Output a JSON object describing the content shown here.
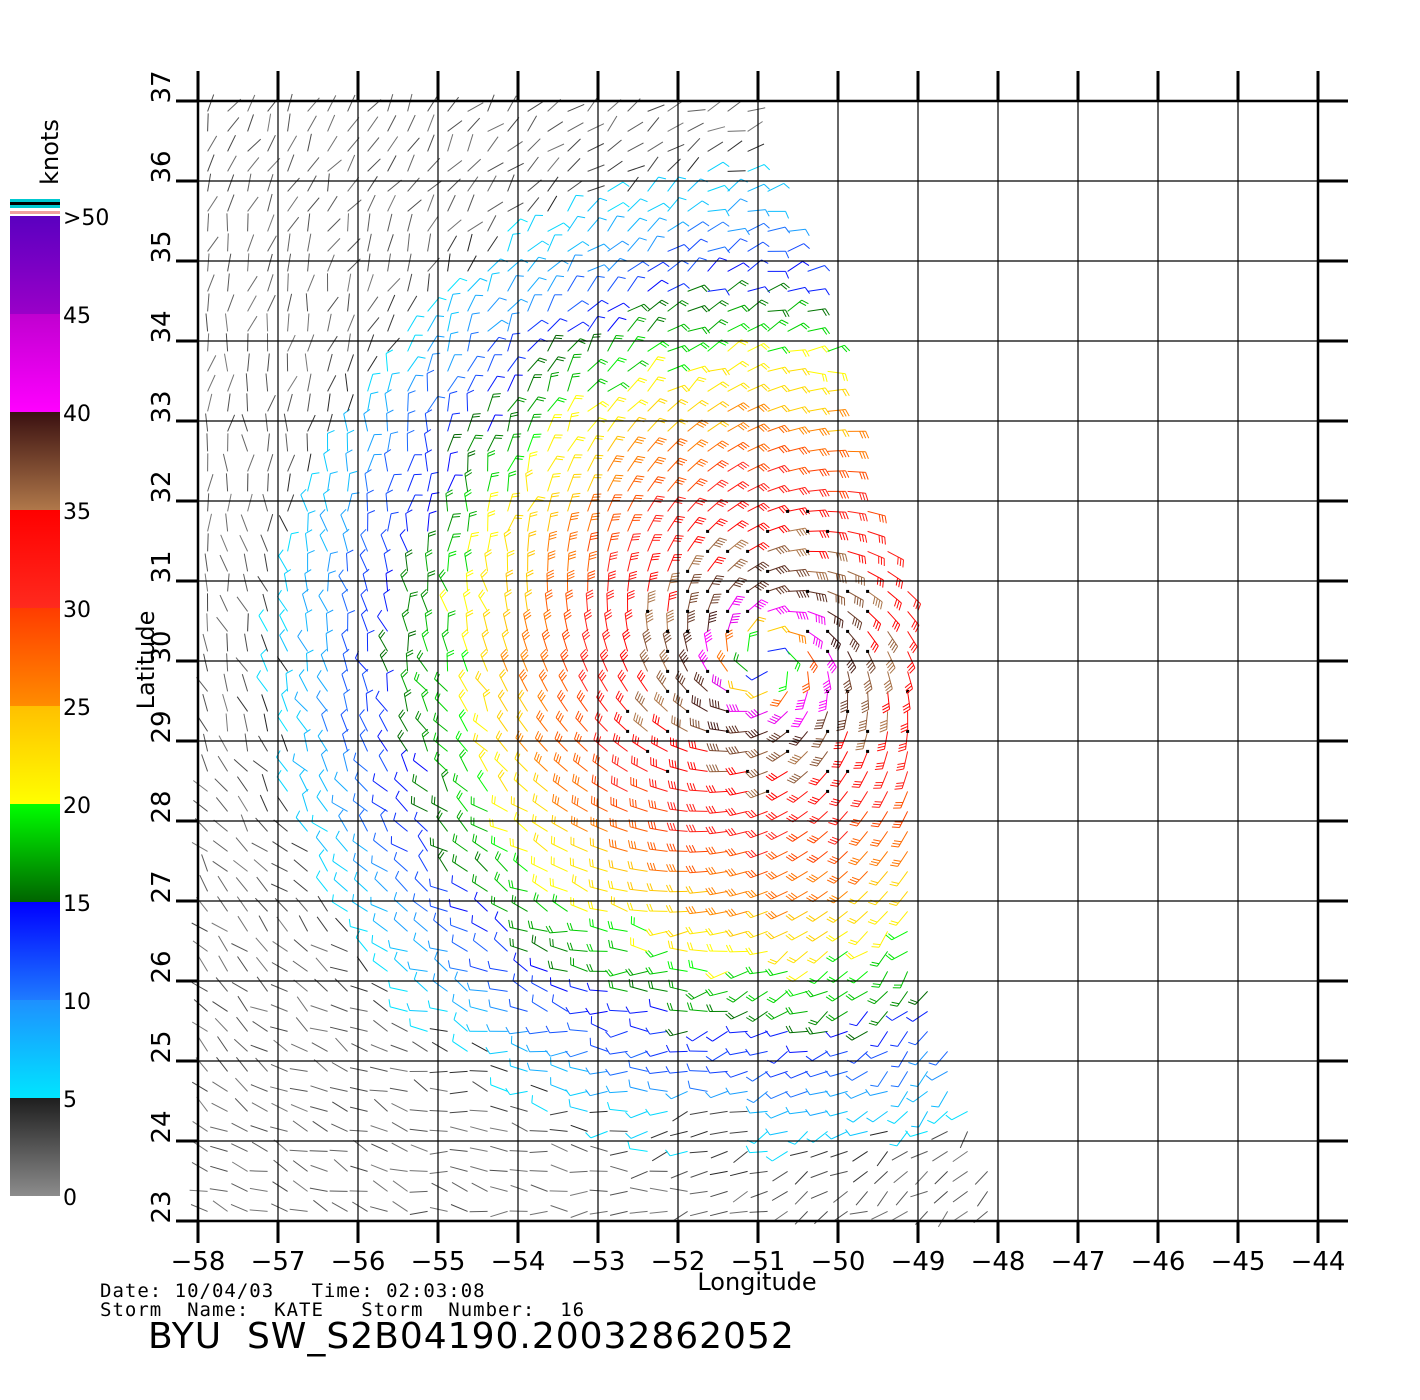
{
  "chart_data": {
    "type": "wind-barb map",
    "xlabel": "Longitude",
    "ylabel": "Latitude",
    "xlim": [
      -58,
      -44
    ],
    "ylim": [
      23,
      37
    ],
    "x_ticks": [
      "−58",
      "−57",
      "−56",
      "−55",
      "−54",
      "−53",
      "−52",
      "−51",
      "−50",
      "−49",
      "−48",
      "−47",
      "−46",
      "−45",
      "−44"
    ],
    "y_ticks": [
      "23",
      "24",
      "25",
      "26",
      "27",
      "28",
      "29",
      "30",
      "31",
      "32",
      "33",
      "34",
      "35",
      "36",
      "37"
    ],
    "grid": true,
    "storm_center": {
      "lon": -50.9,
      "lat": 30.0
    },
    "swath_west_lon": -58,
    "swath_east_lon_by_lat": [
      [
        23,
        -48.0
      ],
      [
        24,
        -48.2
      ],
      [
        25,
        -48.5
      ],
      [
        26,
        -48.9
      ],
      [
        27,
        -49.1
      ],
      [
        28,
        -49.1
      ],
      [
        29,
        -49.0
      ],
      [
        30,
        -49.0
      ],
      [
        31,
        -49.1
      ],
      [
        32,
        -49.6
      ],
      [
        33,
        -49.9
      ],
      [
        34,
        -50.1
      ],
      [
        35,
        -50.4
      ],
      [
        36,
        -50.9
      ],
      [
        37,
        -51.0
      ]
    ],
    "colorbar": {
      "unit_label": "knots",
      "tick_labels": [
        "0",
        "5",
        "10",
        "15",
        "20",
        "25",
        "30",
        "35",
        "40",
        "45",
        ">50"
      ],
      "bands": [
        {
          "from": 0,
          "to": 5,
          "colors": [
            "#8c8c8c",
            "#1e1e1e"
          ]
        },
        {
          "from": 5,
          "to": 10,
          "colors": [
            "#00e5ff",
            "#1e90ff"
          ]
        },
        {
          "from": 10,
          "to": 15,
          "colors": [
            "#1e7bff",
            "#0000ff"
          ]
        },
        {
          "from": 15,
          "to": 20,
          "colors": [
            "#006400",
            "#00ff00"
          ]
        },
        {
          "from": 20,
          "to": 25,
          "colors": [
            "#ffff00",
            "#ffc000"
          ]
        },
        {
          "from": 25,
          "to": 30,
          "colors": [
            "#ff8c00",
            "#ff3c00"
          ]
        },
        {
          "from": 30,
          "to": 35,
          "colors": [
            "#ff2a1e",
            "#ff0000"
          ]
        },
        {
          "from": 35,
          "to": 40,
          "colors": [
            "#b0784a",
            "#3a1010"
          ]
        },
        {
          "from": 40,
          "to": 45,
          "colors": [
            "#ff00ff",
            "#c000d0"
          ]
        },
        {
          "from": 45,
          "to": 50,
          "colors": [
            "#9a00c8",
            "#5a00c0"
          ]
        }
      ]
    }
  },
  "info": {
    "date_line": "Date: 10/04/03   Time: 02:03:08",
    "storm_line": "Storm  Name:  KATE   Storm  Number:  16",
    "product_title": "BYU  SW_S2B04190.20032862052"
  }
}
